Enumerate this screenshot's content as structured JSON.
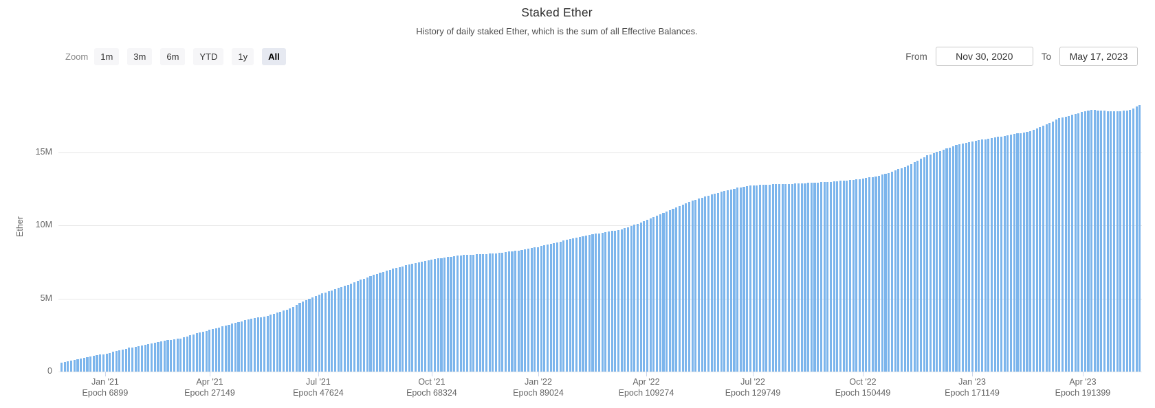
{
  "header": {
    "title": "Staked Ether",
    "subtitle": "History of daily staked Ether, which is the sum of all Effective Balances."
  },
  "range_selector": {
    "zoom_label": "Zoom",
    "buttons": [
      {
        "label": "1m",
        "selected": false
      },
      {
        "label": "3m",
        "selected": false
      },
      {
        "label": "6m",
        "selected": false
      },
      {
        "label": "YTD",
        "selected": false
      },
      {
        "label": "1y",
        "selected": false
      },
      {
        "label": "All",
        "selected": true
      }
    ],
    "from_label": "From",
    "from_value": "Nov 30, 2020",
    "to_label": "To",
    "to_value": "May 17, 2023"
  },
  "chart_data": {
    "type": "bar",
    "title": "Staked Ether",
    "subtitle": "History of daily staked Ether, which is the sum of all Effective Balances.",
    "ylabel": "Ether",
    "unit_millions_eth": true,
    "ylim": [
      0,
      18.7
    ],
    "grid": true,
    "x_range": [
      "Nov 30, 2020",
      "May 17, 2023"
    ],
    "y_ticks": [
      {
        "label": "0",
        "value": 0
      },
      {
        "label": "5M",
        "value": 5
      },
      {
        "label": "10M",
        "value": 10
      },
      {
        "label": "15M",
        "value": 15
      }
    ],
    "x_ticks": [
      {
        "date": "Jan '21",
        "epoch": "Epoch 6899",
        "pos": 0.0431
      },
      {
        "date": "Apr '21",
        "epoch": "Epoch 27149",
        "pos": 0.1396
      },
      {
        "date": "Jul '21",
        "epoch": "Epoch 47624",
        "pos": 0.2398
      },
      {
        "date": "Oct '21",
        "epoch": "Epoch 68324",
        "pos": 0.3445
      },
      {
        "date": "Jan '22",
        "epoch": "Epoch 89024",
        "pos": 0.4429
      },
      {
        "date": "Apr '22",
        "epoch": "Epoch 109274",
        "pos": 0.5425
      },
      {
        "date": "Jul '22",
        "epoch": "Epoch 129749",
        "pos": 0.6409
      },
      {
        "date": "Oct '22",
        "epoch": "Epoch 150449",
        "pos": 0.7424
      },
      {
        "date": "Jan '23",
        "epoch": "Epoch 171149",
        "pos": 0.8433
      },
      {
        "date": "Apr '23",
        "epoch": "Epoch 191399",
        "pos": 0.9454
      }
    ],
    "bar_color": "#7cb5ec",
    "n_bars": 336,
    "series_name": "Staked Ether",
    "anchor_points_fraction_vs_million_eth": [
      [
        0.0,
        0.6
      ],
      [
        0.003,
        0.65
      ],
      [
        0.022,
        0.95
      ],
      [
        0.032,
        1.1
      ],
      [
        0.043,
        1.25
      ],
      [
        0.063,
        1.63
      ],
      [
        0.095,
        2.1
      ],
      [
        0.11,
        2.27
      ],
      [
        0.127,
        2.65
      ],
      [
        0.14,
        2.9
      ],
      [
        0.159,
        3.3
      ],
      [
        0.175,
        3.6
      ],
      [
        0.19,
        3.8
      ],
      [
        0.213,
        4.35
      ],
      [
        0.222,
        4.75
      ],
      [
        0.24,
        5.3
      ],
      [
        0.258,
        5.75
      ],
      [
        0.27,
        6.05
      ],
      [
        0.285,
        6.5
      ],
      [
        0.301,
        6.9
      ],
      [
        0.318,
        7.25
      ],
      [
        0.333,
        7.5
      ],
      [
        0.345,
        7.7
      ],
      [
        0.368,
        7.95
      ],
      [
        0.385,
        8.02
      ],
      [
        0.403,
        8.1
      ],
      [
        0.424,
        8.3
      ],
      [
        0.443,
        8.55
      ],
      [
        0.465,
        8.95
      ],
      [
        0.485,
        9.3
      ],
      [
        0.517,
        9.7
      ],
      [
        0.53,
        10.0
      ],
      [
        0.543,
        10.4
      ],
      [
        0.56,
        10.9
      ],
      [
        0.581,
        11.6
      ],
      [
        0.6,
        12.05
      ],
      [
        0.612,
        12.3
      ],
      [
        0.628,
        12.6
      ],
      [
        0.641,
        12.75
      ],
      [
        0.66,
        12.82
      ],
      [
        0.676,
        12.85
      ],
      [
        0.695,
        12.92
      ],
      [
        0.714,
        13.0
      ],
      [
        0.73,
        13.1
      ],
      [
        0.742,
        13.2
      ],
      [
        0.758,
        13.4
      ],
      [
        0.771,
        13.7
      ],
      [
        0.788,
        14.2
      ],
      [
        0.803,
        14.8
      ],
      [
        0.82,
        15.25
      ],
      [
        0.834,
        15.6
      ],
      [
        0.848,
        15.8
      ],
      [
        0.86,
        15.95
      ],
      [
        0.879,
        16.2
      ],
      [
        0.898,
        16.45
      ],
      [
        0.912,
        16.9
      ],
      [
        0.926,
        17.35
      ],
      [
        0.939,
        17.6
      ],
      [
        0.95,
        17.85
      ],
      [
        0.957,
        17.92
      ],
      [
        0.964,
        17.87
      ],
      [
        0.977,
        17.8
      ],
      [
        0.99,
        17.88
      ],
      [
        0.996,
        18.1
      ],
      [
        1.0,
        18.25
      ]
    ]
  },
  "colors": {
    "bar": "#7cb5ec",
    "gridline": "#e7e7e7",
    "axis_tick": "#ccd6eb",
    "axis_text": "#666666",
    "title_text": "#2e2e2e",
    "button_bg": "#f6f6f8",
    "button_selected_bg": "#e6e9f1",
    "background": "#ffffff"
  }
}
